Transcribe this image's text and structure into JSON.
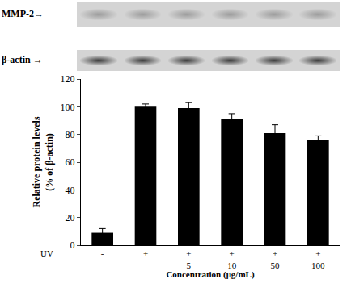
{
  "chart_data": {
    "type": "bar",
    "blot_labels": [
      "MMP-2→",
      "β-actin →"
    ],
    "categories": [
      "-",
      "+",
      "+",
      "+",
      "+",
      "+"
    ],
    "sub_categories": [
      null,
      null,
      "5",
      "10",
      "50",
      "100"
    ],
    "row_label": "UV",
    "values": [
      9,
      100,
      99,
      91,
      81,
      76
    ],
    "errors": [
      3,
      2,
      4,
      4,
      6,
      3
    ],
    "color": "#000000",
    "x_label": "Concentration (μg/mL)",
    "y_label": [
      "Relative protein levels",
      "(% of β-actin)"
    ],
    "ylim": [
      0,
      120
    ],
    "yticks": [
      0,
      20,
      40,
      60,
      80,
      100,
      120
    ],
    "grid": false
  }
}
